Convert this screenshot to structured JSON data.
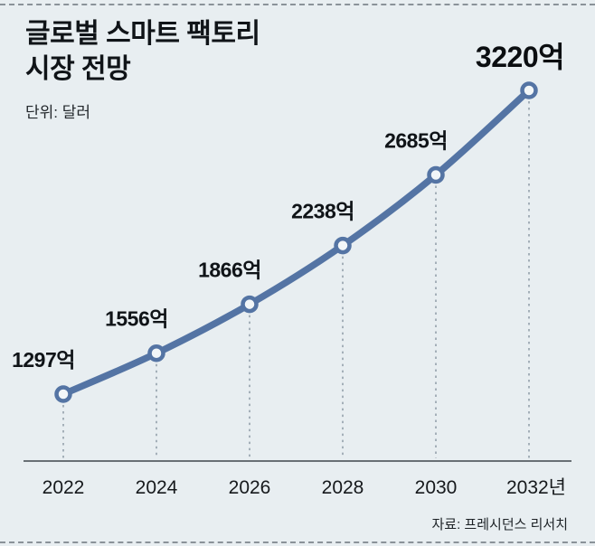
{
  "header": {
    "title_line1": "글로벌 스마트 팩토리",
    "title_line2": "시장 전망",
    "unit_label": "단위: 달러"
  },
  "footer": {
    "source": "자료: 프레시던스 리서치"
  },
  "chart_data": {
    "type": "line",
    "title": "글로벌 스마트 팩토리 시장 전망",
    "unit": "달러",
    "categories": [
      "2022",
      "2024",
      "2026",
      "2028",
      "2030",
      "2032년"
    ],
    "values": [
      1297,
      1556,
      1866,
      2238,
      2685,
      3220
    ],
    "value_labels": [
      "1297억",
      "1556억",
      "1866억",
      "2238억",
      "2685억",
      "3220억"
    ],
    "xlabel": "",
    "ylabel": "",
    "ylim": [
      1297,
      3220
    ],
    "legend": "none",
    "grid": "dashed vertical drop lines from each point to baseline",
    "marker": "open-circle",
    "colors": {
      "line": "#5474a4",
      "marker_fill": "#f2f6f8",
      "background": "#e8eef1",
      "drop_line": "#93a0ab",
      "axis": "#3f464c",
      "text": "#101418"
    }
  }
}
